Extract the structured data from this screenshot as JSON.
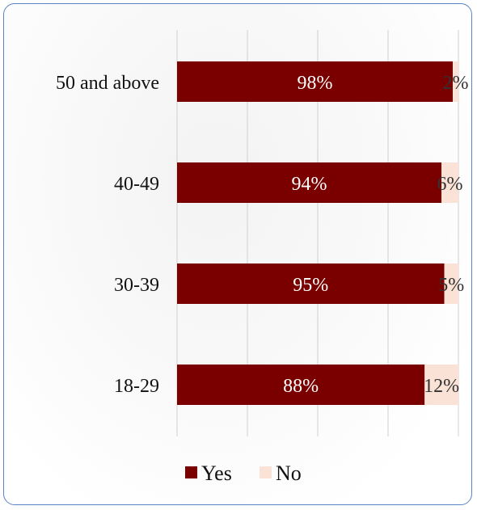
{
  "chart_data": {
    "type": "bar",
    "stacked": true,
    "orientation": "horizontal",
    "percent": true,
    "categories": [
      "50 and above",
      "40-49",
      "30-39",
      "18-29"
    ],
    "series": [
      {
        "name": "Yes",
        "values": [
          98,
          94,
          95,
          88
        ],
        "color": "#7a0000",
        "label_color": "#ffffff"
      },
      {
        "name": "No",
        "values": [
          2,
          6,
          5,
          12
        ],
        "color": "#fae3d6",
        "label_color": "#333333"
      }
    ],
    "value_labels": [
      [
        "98%",
        "94%",
        "95%",
        "88%"
      ],
      [
        "2%",
        "6%",
        "5%",
        "12%"
      ]
    ],
    "xlim": [
      0,
      100
    ],
    "grid": true,
    "legend": "bottom"
  },
  "colors": {
    "border": "#5b84c4",
    "grid": "#d0d0d0"
  }
}
